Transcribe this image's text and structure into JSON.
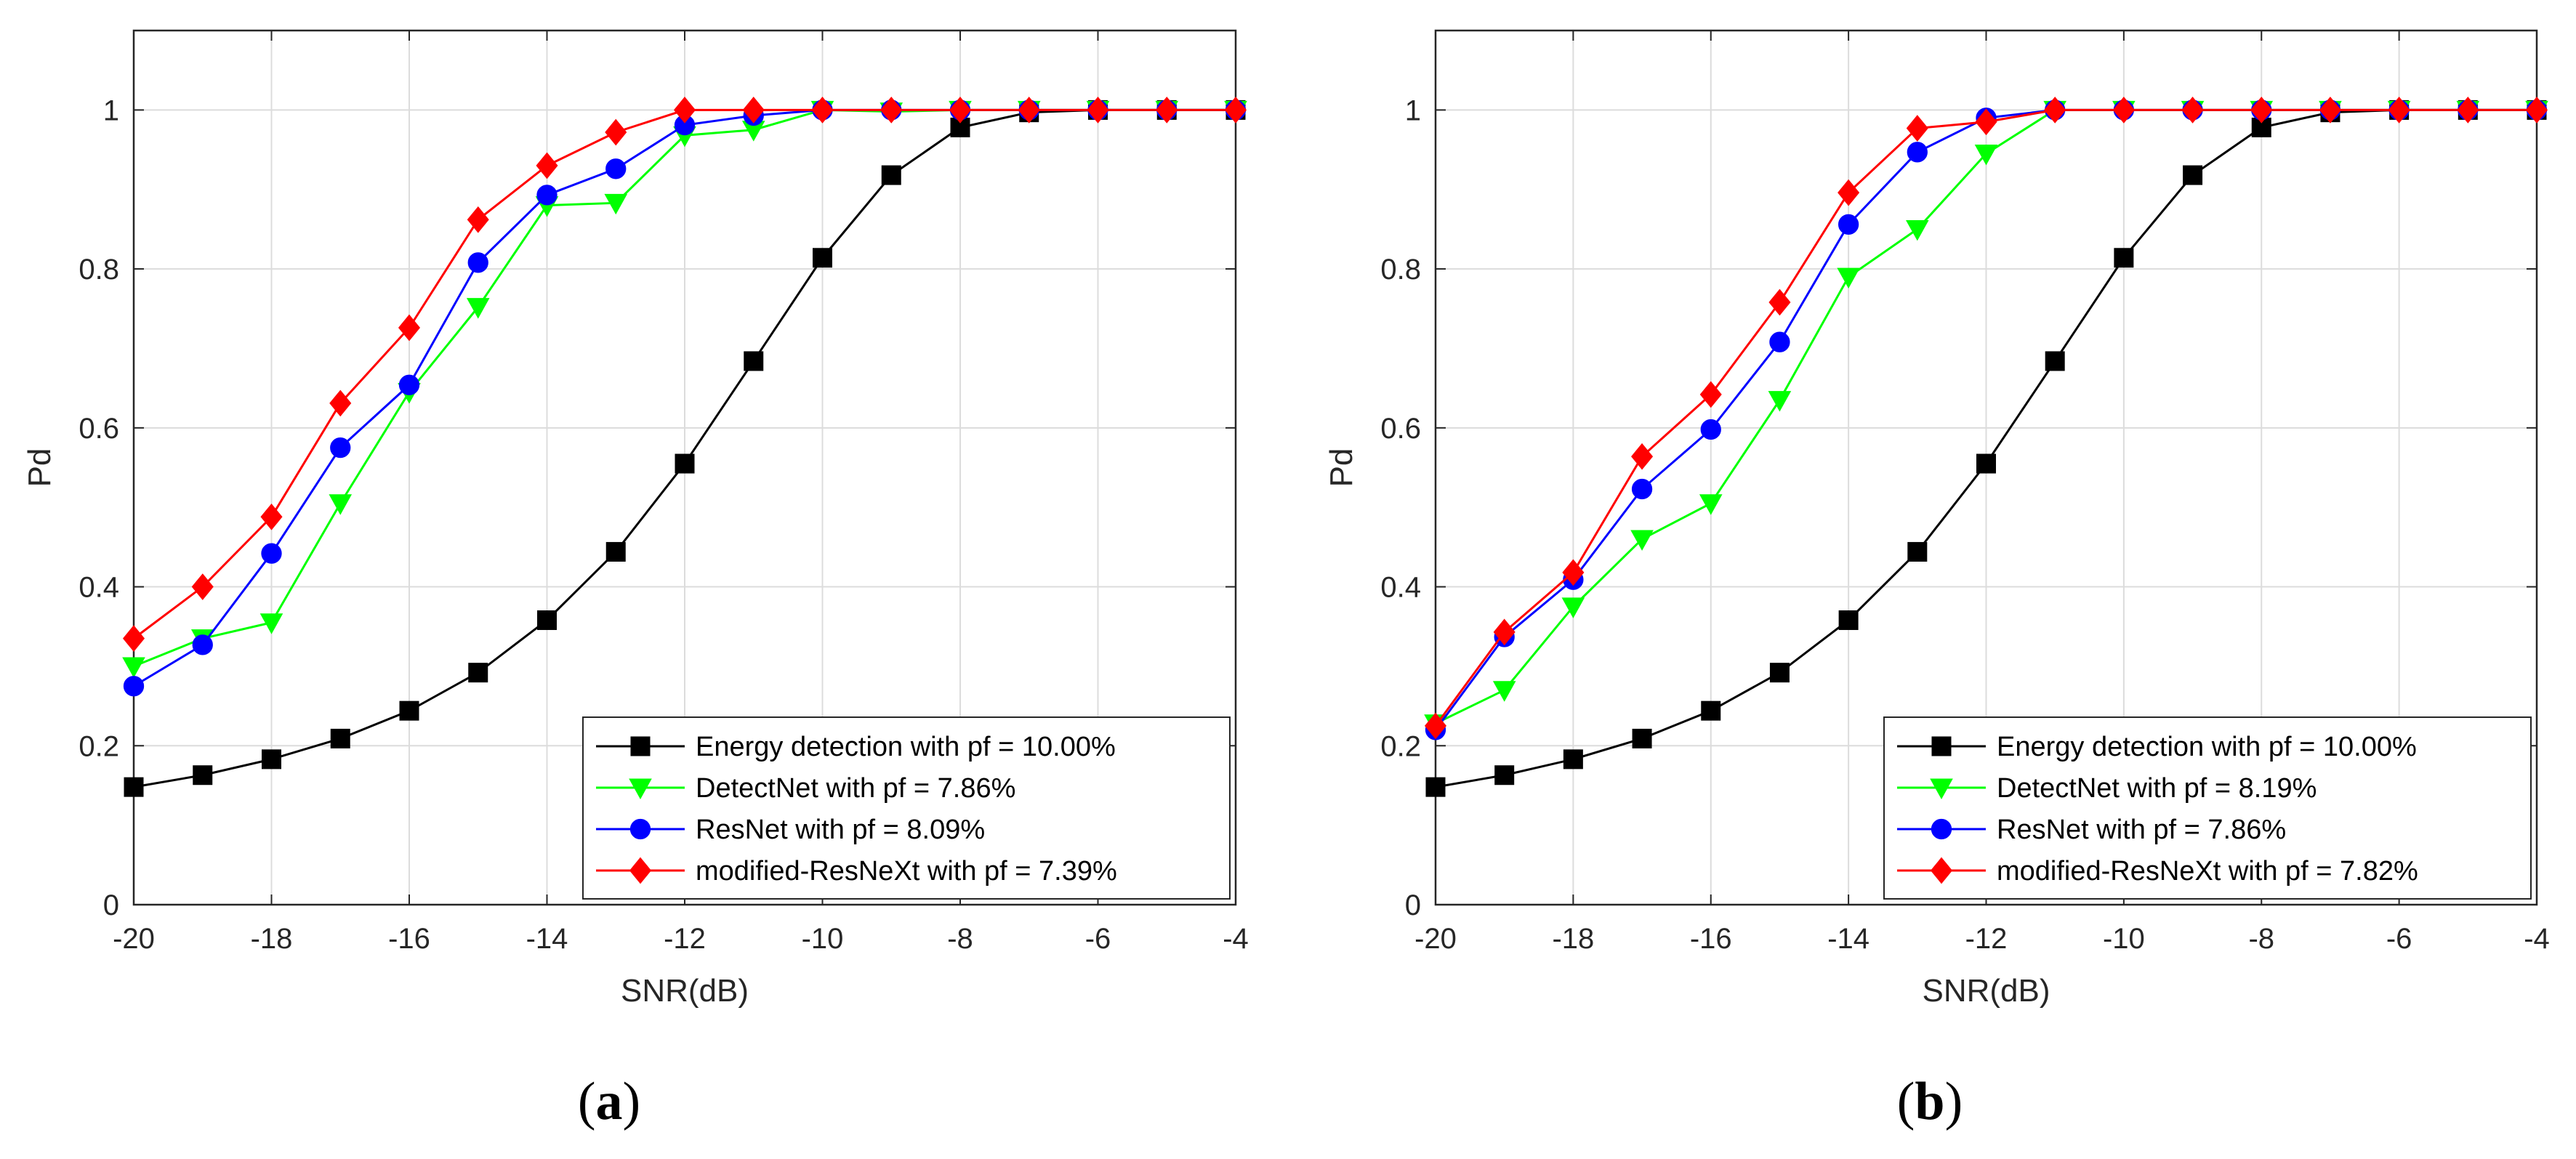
{
  "chart_data": [
    {
      "type": "line",
      "caption": "(a)",
      "caption_letter": "a",
      "xlabel": "SNR(dB)",
      "ylabel": "Pd",
      "xlim": [
        -20,
        -4
      ],
      "ylim": [
        0,
        1.1
      ],
      "xticks": [
        -20,
        -18,
        -16,
        -14,
        -12,
        -10,
        -8,
        -6,
        -4
      ],
      "yticks": [
        0,
        0.2,
        0.4,
        0.6,
        0.8,
        1
      ],
      "x": [
        -20,
        -19,
        -18,
        -17,
        -16,
        -15,
        -14,
        -13,
        -12,
        -11,
        -10,
        -9,
        -8,
        -7,
        -6,
        -5,
        -4
      ],
      "grid": true,
      "legend_position": "bottom-right",
      "series": [
        {
          "name": "Energy detection with pf = 10.00%",
          "color": "#000000",
          "marker": "square",
          "values": [
            0.148,
            0.163,
            0.183,
            0.209,
            0.244,
            0.292,
            0.358,
            0.444,
            0.555,
            0.684,
            0.814,
            0.918,
            0.978,
            0.997,
            1.0,
            1.0,
            1.0
          ]
        },
        {
          "name": "DetectNet with pf = 7.86%",
          "color": "#00ff00",
          "marker": "triangle-down",
          "values": [
            0.3,
            0.335,
            0.355,
            0.505,
            0.645,
            0.752,
            0.88,
            0.883,
            0.968,
            0.975,
            1.0,
            0.998,
            1.0,
            1.0,
            1.0,
            1.0,
            1.0
          ]
        },
        {
          "name": "ResNet with pf = 8.09%",
          "color": "#0000ff",
          "marker": "circle",
          "values": [
            0.275,
            0.327,
            0.442,
            0.575,
            0.654,
            0.808,
            0.893,
            0.926,
            0.981,
            0.993,
            1.0,
            1.0,
            1.0,
            1.0,
            1.0,
            1.0,
            1.0
          ]
        },
        {
          "name": "modified-ResNeXt with pf = 7.39%",
          "color": "#ff0000",
          "marker": "diamond",
          "values": [
            0.335,
            0.4,
            0.488,
            0.631,
            0.726,
            0.862,
            0.93,
            0.972,
            1.0,
            1.0,
            1.0,
            1.0,
            1.0,
            1.0,
            1.0,
            1.0,
            1.0
          ]
        }
      ]
    },
    {
      "type": "line",
      "caption": "(b)",
      "caption_letter": "b",
      "xlabel": "SNR(dB)",
      "ylabel": "Pd",
      "xlim": [
        -20,
        -4
      ],
      "ylim": [
        0,
        1.1
      ],
      "xticks": [
        -20,
        -18,
        -16,
        -14,
        -12,
        -10,
        -8,
        -6,
        -4
      ],
      "yticks": [
        0,
        0.2,
        0.4,
        0.6,
        0.8,
        1
      ],
      "x": [
        -20,
        -19,
        -18,
        -17,
        -16,
        -15,
        -14,
        -13,
        -12,
        -11,
        -10,
        -9,
        -8,
        -7,
        -6,
        -5,
        -4
      ],
      "grid": true,
      "legend_position": "bottom-right",
      "series": [
        {
          "name": "Energy detection with pf = 10.00%",
          "color": "#000000",
          "marker": "square",
          "values": [
            0.148,
            0.163,
            0.183,
            0.209,
            0.244,
            0.292,
            0.358,
            0.444,
            0.555,
            0.684,
            0.814,
            0.918,
            0.978,
            0.997,
            1.0,
            1.0,
            1.0
          ]
        },
        {
          "name": "DetectNet with pf = 8.19%",
          "color": "#00ff00",
          "marker": "triangle-down",
          "values": [
            0.228,
            0.27,
            0.375,
            0.46,
            0.505,
            0.635,
            0.79,
            0.85,
            0.945,
            1.0,
            1.0,
            1.0,
            1.0,
            1.0,
            1.0,
            1.0,
            1.0
          ]
        },
        {
          "name": "ResNet with pf = 7.86%",
          "color": "#0000ff",
          "marker": "circle",
          "values": [
            0.22,
            0.337,
            0.409,
            0.523,
            0.598,
            0.708,
            0.856,
            0.947,
            0.99,
            1.0,
            1.0,
            1.0,
            1.0,
            1.0,
            1.0,
            1.0,
            1.0
          ]
        },
        {
          "name": "modified-ResNeXt with pf = 7.82%",
          "color": "#ff0000",
          "marker": "diamond",
          "values": [
            0.225,
            0.343,
            0.418,
            0.564,
            0.642,
            0.758,
            0.896,
            0.977,
            0.985,
            1.0,
            1.0,
            1.0,
            1.0,
            1.0,
            1.0,
            1.0,
            1.0
          ]
        }
      ]
    }
  ]
}
